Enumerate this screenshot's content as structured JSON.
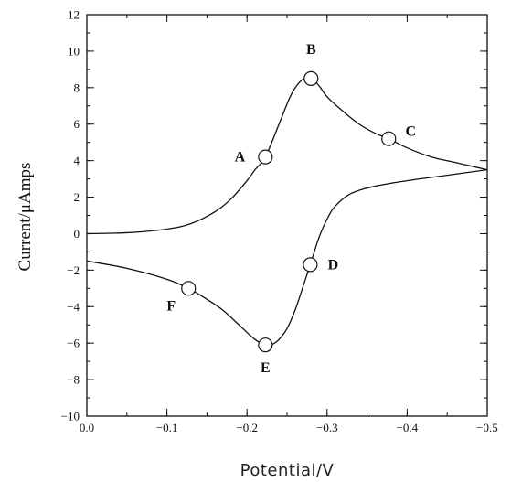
{
  "chart_data": {
    "type": "line",
    "xlabel": "Potential/V",
    "ylabel": "Current/μAmps",
    "xlim": [
      0.0,
      -0.5
    ],
    "ylim": [
      -10,
      12
    ],
    "x_ticks": [
      0.0,
      -0.1,
      -0.2,
      -0.3,
      -0.4,
      -0.5
    ],
    "x_tick_labels": [
      "0.0",
      "−0.1",
      "−0.2",
      "−0.3",
      "−0.4",
      "−0.5"
    ],
    "y_ticks": [
      -10,
      -8,
      -6,
      -4,
      -2,
      0,
      2,
      4,
      6,
      8,
      10,
      12
    ],
    "y_tick_labels": [
      "−10",
      "−8",
      "−6",
      "−4",
      "−2",
      "0",
      "2",
      "4",
      "6",
      "8",
      "10",
      "12"
    ],
    "grid": false,
    "series": [
      {
        "x": [
          0.0,
          -0.05,
          -0.1,
          -0.13,
          -0.16,
          -0.18,
          -0.2,
          -0.21,
          -0.223,
          -0.24,
          -0.255,
          -0.268,
          -0.28,
          -0.29,
          -0.3,
          -0.32,
          -0.34,
          -0.36,
          -0.377,
          -0.4,
          -0.43,
          -0.46,
          -0.5
        ],
        "y": [
          0.0,
          0.05,
          0.25,
          0.55,
          1.2,
          1.9,
          2.9,
          3.5,
          4.2,
          6.0,
          7.6,
          8.4,
          8.5,
          8.1,
          7.5,
          6.7,
          6.0,
          5.5,
          5.2,
          4.7,
          4.2,
          3.9,
          3.5
        ]
      },
      {
        "x": [
          -0.5,
          -0.45,
          -0.4,
          -0.36,
          -0.33,
          -0.31,
          -0.3,
          -0.29,
          -0.279,
          -0.27,
          -0.26,
          -0.25,
          -0.24,
          -0.23,
          -0.223,
          -0.21,
          -0.19,
          -0.17,
          -0.15,
          -0.127,
          -0.1,
          -0.05,
          0.0
        ],
        "y": [
          3.5,
          3.2,
          2.9,
          2.6,
          2.2,
          1.5,
          0.8,
          -0.2,
          -1.7,
          -2.9,
          -4.2,
          -5.2,
          -5.8,
          -6.1,
          -6.1,
          -5.8,
          -5.0,
          -4.2,
          -3.6,
          -3.0,
          -2.5,
          -1.9,
          -1.5
        ]
      }
    ],
    "annotations": [
      {
        "label": "A",
        "x": -0.223,
        "y": 4.2
      },
      {
        "label": "B",
        "x": -0.28,
        "y": 8.5
      },
      {
        "label": "C",
        "x": -0.377,
        "y": 5.2
      },
      {
        "label": "D",
        "x": -0.279,
        "y": -1.7
      },
      {
        "label": "E",
        "x": -0.223,
        "y": -6.1
      },
      {
        "label": "F",
        "x": -0.127,
        "y": -3.0
      }
    ]
  }
}
